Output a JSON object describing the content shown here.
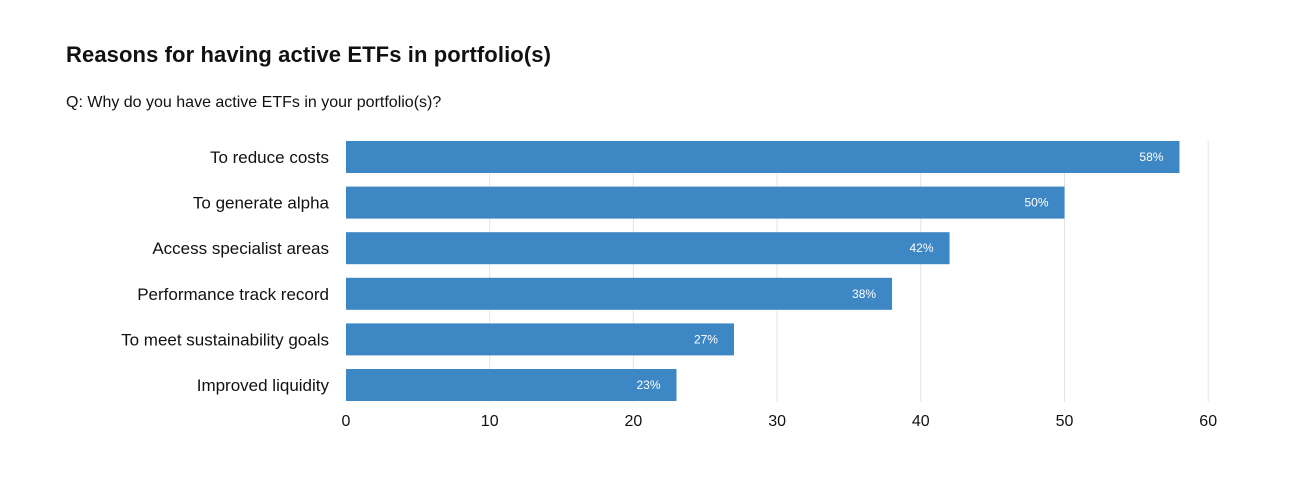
{
  "title": "Reasons for having active ETFs in portfolio(s)",
  "subtitle": "Q: Why do you have active ETFs in your portfolio(s)?",
  "colors": {
    "bar": "#3d87c4",
    "grid": "#e3e3e3",
    "bar_label": "#ffffff"
  },
  "chart_data": {
    "type": "bar",
    "orientation": "horizontal",
    "title": "Reasons for having active ETFs in portfolio(s)",
    "subtitle": "Q: Why do you have active ETFs in your portfolio(s)?",
    "categories": [
      "To reduce costs",
      "To generate alpha",
      "Access specialist areas",
      "Performance track record",
      "To meet sustainability goals",
      "Improved liquidity"
    ],
    "values": [
      58,
      50,
      42,
      38,
      27,
      23
    ],
    "value_labels": [
      "58%",
      "50%",
      "42%",
      "38%",
      "27%",
      "23%"
    ],
    "xlim": [
      0,
      60
    ],
    "xticks": [
      0,
      10,
      20,
      30,
      40,
      50,
      60
    ],
    "grid": true,
    "legend": "none"
  }
}
